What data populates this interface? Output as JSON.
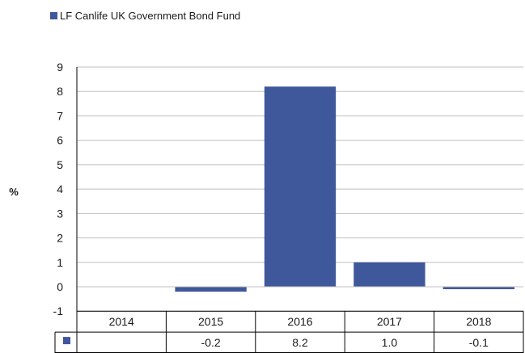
{
  "chart_data": {
    "type": "bar",
    "title": "",
    "xlabel": "",
    "ylabel": "%",
    "categories": [
      "2014",
      "2015",
      "2016",
      "2017",
      "2018"
    ],
    "series": [
      {
        "name": "LF Canlife UK Government Bond Fund",
        "values": [
          null,
          -0.2,
          8.2,
          1.0,
          -0.1
        ],
        "value_labels": [
          "",
          "-0.2",
          "8.2",
          "1.0",
          "-0.1"
        ],
        "color": "#3F579B"
      }
    ],
    "ylim": [
      -1,
      9
    ],
    "yticks": [
      "-1",
      "0",
      "1",
      "2",
      "3",
      "4",
      "5",
      "6",
      "7",
      "8",
      "9"
    ],
    "grid": true,
    "legend_position": "top-left",
    "data_table": true
  }
}
